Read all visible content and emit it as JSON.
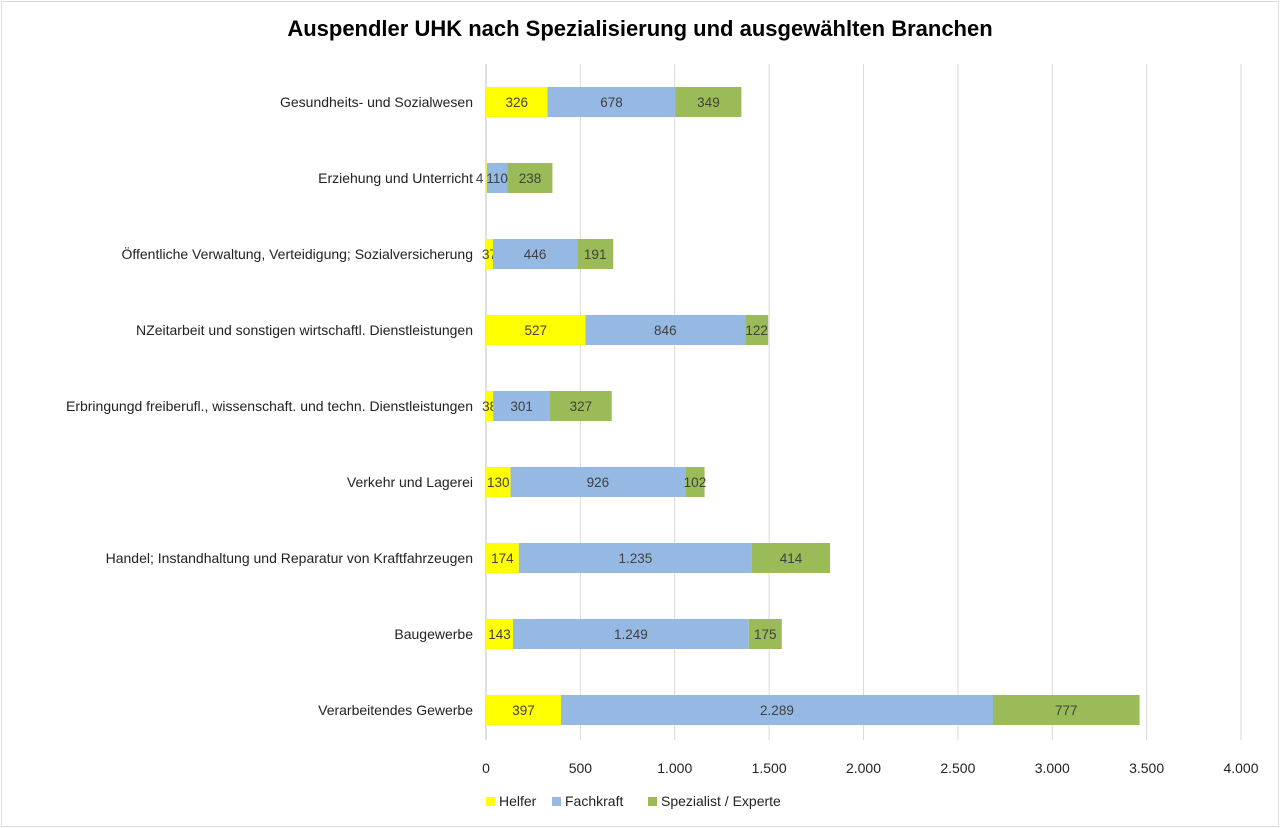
{
  "chart_data": {
    "type": "bar",
    "orientation": "horizontal",
    "stacked": true,
    "title": "Auspendler UHK nach Spezialisierung und ausgewählten Branchen",
    "categories": [
      "Gesundheits- und Sozialwesen",
      "Erziehung und Unterricht",
      "Öffentliche Verwaltung, Verteidigung; Sozialversicherung",
      "NZeitarbeit und sonstigen wirtschaftl. Dienstleistungen",
      "Erbringungd freiberufl., wissenschaft. und techn. Dienstleistungen",
      "Verkehr und Lagerei",
      "Handel; Instandhaltung und Reparatur von Kraftfahrzeugen",
      "Baugewerbe",
      "Verarbeitendes Gewerbe"
    ],
    "series": [
      {
        "name": "Helfer",
        "color": "#ffff00",
        "values": [
          326,
          4,
          37,
          527,
          38,
          130,
          174,
          143,
          397
        ]
      },
      {
        "name": "Fachkraft",
        "color": "#95b9e3",
        "values": [
          678,
          110,
          446,
          846,
          301,
          926,
          1235,
          1249,
          2289
        ]
      },
      {
        "name": "Spezialist / Experte",
        "color": "#9bbb59",
        "values": [
          349,
          238,
          191,
          122,
          327,
          102,
          414,
          175,
          777
        ]
      }
    ],
    "xlim": [
      0,
      4000
    ],
    "xticks": [
      0,
      500,
      1000,
      1500,
      2000,
      2500,
      3000,
      3500,
      4000
    ],
    "xtick_labels": [
      "0",
      "500",
      "1.000",
      "1.500",
      "2.000",
      "2.500",
      "3.000",
      "3.500",
      "4.000"
    ],
    "grid": "vertical",
    "legend": "bottom",
    "number_format": "de"
  }
}
